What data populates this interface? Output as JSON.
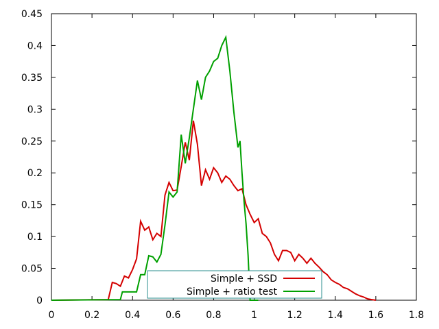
{
  "chart_data": {
    "type": "line",
    "xlim": [
      0,
      1.8
    ],
    "ylim": [
      0,
      0.45
    ],
    "x_ticks": [
      0,
      0.2,
      0.4,
      0.6,
      0.8,
      1,
      1.2,
      1.4,
      1.6,
      1.8
    ],
    "x_tick_labels": [
      "0",
      "0.2",
      "0.4",
      "0.6",
      "0.8",
      "1",
      "1.2",
      "1.4",
      "1.6",
      "1.8"
    ],
    "y_ticks": [
      0,
      0.05,
      0.1,
      0.15,
      0.2,
      0.25,
      0.3,
      0.35,
      0.4,
      0.45
    ],
    "y_tick_labels": [
      "0",
      "0.05",
      "0.1",
      "0.15",
      "0.2",
      "0.25",
      "0.3",
      "0.35",
      "0.4",
      "0.45"
    ],
    "grid": false,
    "legend_position": "bottom-center",
    "series": [
      {
        "name": "Simple + SSD",
        "color": "#d40000",
        "x": [
          0,
          0.28,
          0.3,
          0.32,
          0.34,
          0.36,
          0.38,
          0.4,
          0.42,
          0.44,
          0.46,
          0.48,
          0.5,
          0.52,
          0.54,
          0.56,
          0.58,
          0.6,
          0.62,
          0.64,
          0.66,
          0.68,
          0.7,
          0.72,
          0.74,
          0.76,
          0.78,
          0.8,
          0.82,
          0.84,
          0.86,
          0.88,
          0.9,
          0.92,
          0.94,
          0.96,
          0.98,
          1.0,
          1.02,
          1.04,
          1.06,
          1.08,
          1.1,
          1.12,
          1.14,
          1.16,
          1.18,
          1.2,
          1.22,
          1.24,
          1.26,
          1.28,
          1.3,
          1.32,
          1.34,
          1.36,
          1.38,
          1.4,
          1.42,
          1.44,
          1.46,
          1.48,
          1.5,
          1.52,
          1.54,
          1.56,
          1.58,
          1.6
        ],
        "y": [
          0,
          0.001,
          0.028,
          0.026,
          0.022,
          0.038,
          0.035,
          0.048,
          0.065,
          0.124,
          0.11,
          0.115,
          0.095,
          0.105,
          0.1,
          0.165,
          0.185,
          0.172,
          0.173,
          0.21,
          0.248,
          0.22,
          0.282,
          0.245,
          0.18,
          0.205,
          0.19,
          0.208,
          0.2,
          0.185,
          0.195,
          0.19,
          0.18,
          0.172,
          0.175,
          0.15,
          0.135,
          0.122,
          0.128,
          0.105,
          0.1,
          0.09,
          0.072,
          0.062,
          0.078,
          0.078,
          0.075,
          0.062,
          0.072,
          0.066,
          0.058,
          0.066,
          0.058,
          0.052,
          0.045,
          0.04,
          0.032,
          0.028,
          0.025,
          0.02,
          0.018,
          0.014,
          0.01,
          0.007,
          0.005,
          0.002,
          0.001,
          0
        ]
      },
      {
        "name": "Simple + ratio test",
        "color": "#00a000",
        "x": [
          0,
          0.34,
          0.35,
          0.36,
          0.38,
          0.4,
          0.42,
          0.44,
          0.46,
          0.48,
          0.5,
          0.52,
          0.54,
          0.56,
          0.58,
          0.6,
          0.62,
          0.64,
          0.66,
          0.68,
          0.7,
          0.72,
          0.74,
          0.76,
          0.78,
          0.8,
          0.82,
          0.84,
          0.86,
          0.88,
          0.9,
          0.92,
          0.93,
          0.94,
          0.95,
          0.96,
          0.97,
          0.98,
          1.0,
          1.02
        ],
        "y": [
          0,
          0.001,
          0.013,
          0.013,
          0.013,
          0.013,
          0.013,
          0.04,
          0.04,
          0.07,
          0.068,
          0.06,
          0.072,
          0.118,
          0.17,
          0.162,
          0.17,
          0.26,
          0.215,
          0.255,
          0.3,
          0.345,
          0.315,
          0.35,
          0.36,
          0.375,
          0.38,
          0.4,
          0.413,
          0.36,
          0.295,
          0.24,
          0.25,
          0.2,
          0.155,
          0.12,
          0.07,
          0.0,
          0.0,
          0
        ]
      }
    ]
  }
}
